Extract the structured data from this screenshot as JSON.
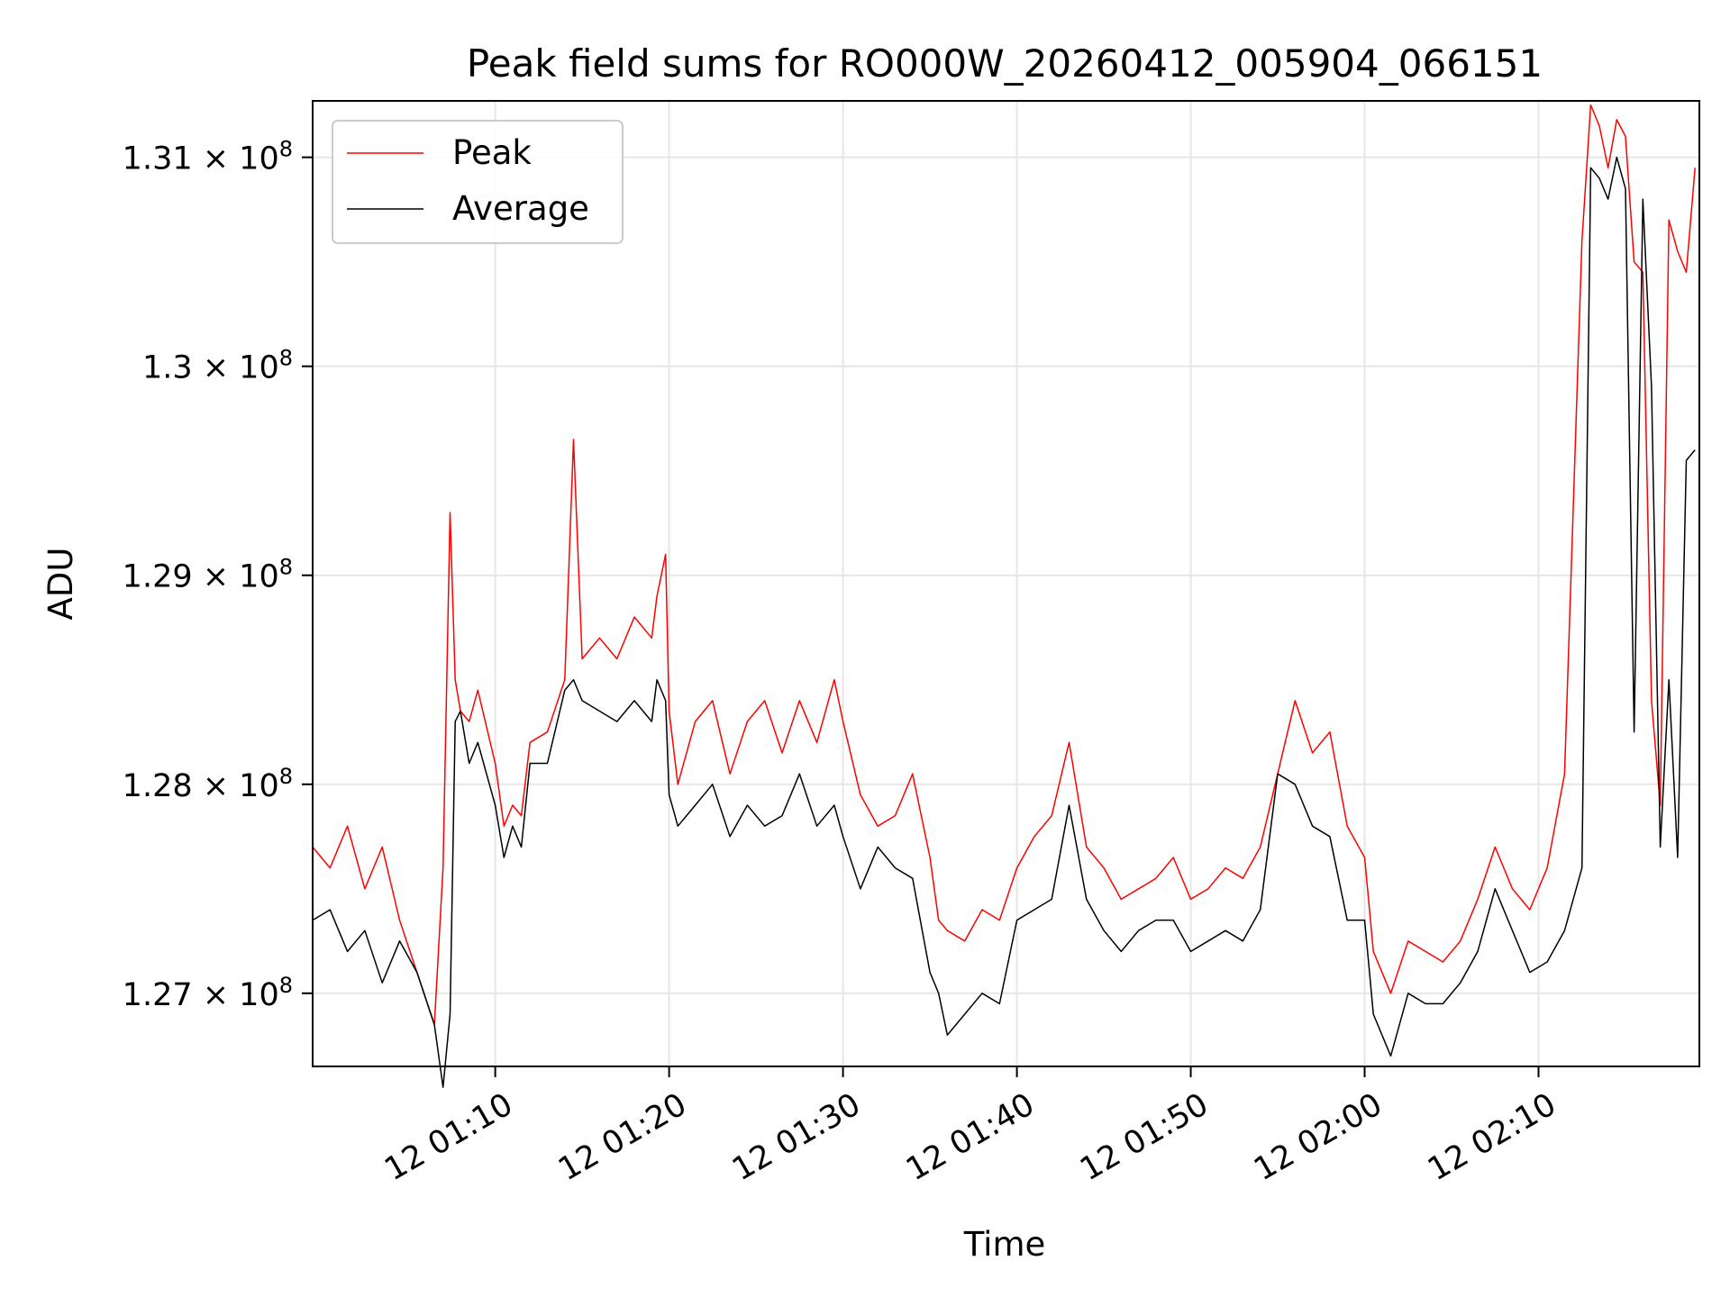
{
  "chart_data": {
    "type": "line",
    "title": "Peak field sums for RO000W_20260412_005904_066151",
    "xlabel": "Time",
    "ylabel": "ADU",
    "x_range_minutes": [
      "00:59:30",
      "02:19:15"
    ],
    "ylim": [
      126650000,
      131270000
    ],
    "grid": true,
    "legend_position": "upper-left",
    "x_ticks": [
      "12 01:10",
      "12 01:20",
      "12 01:30",
      "12 01:40",
      "12 01:50",
      "12 02:00",
      "12 02:10"
    ],
    "x_tick_minutes": [
      70,
      80,
      90,
      100,
      110,
      120,
      130
    ],
    "y_ticks": [
      {
        "mantissa": "1.27",
        "value": 127000000
      },
      {
        "mantissa": "1.28",
        "value": 128000000
      },
      {
        "mantissa": "1.29",
        "value": 129000000
      },
      {
        "mantissa": "1.3",
        "value": 130000000
      },
      {
        "mantissa": "1.31",
        "value": 131000000
      }
    ],
    "y_tick_suffix": "× 10",
    "y_tick_exponent": "8",
    "series": [
      {
        "name": "Peak",
        "color": "#ff0000",
        "x_minutes": [
          59.5,
          60.5,
          61.5,
          62.5,
          63.5,
          64.5,
          65.5,
          66.5,
          67.0,
          67.4,
          67.7,
          68.0,
          68.5,
          69.0,
          70.0,
          70.5,
          71.0,
          71.5,
          72.0,
          73.0,
          74.0,
          74.5,
          75.0,
          76.0,
          77.0,
          78.0,
          79.0,
          79.3,
          79.8,
          80.0,
          80.5,
          81.5,
          82.5,
          83.5,
          84.5,
          85.5,
          86.5,
          87.5,
          88.5,
          89.5,
          90.0,
          91.0,
          92.0,
          93.0,
          94.0,
          95.0,
          95.5,
          96.0,
          97.0,
          98.0,
          99.0,
          100.0,
          101.0,
          102.0,
          103.0,
          104.0,
          105.0,
          106.0,
          107.0,
          108.0,
          109.0,
          110.0,
          111.0,
          112.0,
          113.0,
          114.0,
          115.0,
          116.0,
          117.0,
          118.0,
          119.0,
          120.0,
          120.5,
          121.5,
          122.5,
          123.5,
          124.5,
          125.5,
          126.5,
          127.5,
          128.5,
          129.5,
          130.5,
          131.5,
          132.5,
          133.0,
          133.5,
          134.0,
          134.5,
          135.0,
          135.5,
          136.0,
          136.5,
          137.0,
          137.5,
          138.0,
          138.5,
          139.0
        ],
        "values": [
          127700000,
          127600000,
          127800000,
          127500000,
          127700000,
          127350000,
          127100000,
          126850000,
          127600000,
          129300000,
          128500000,
          128350000,
          128300000,
          128450000,
          128100000,
          127800000,
          127900000,
          127850000,
          128200000,
          128250000,
          128500000,
          129650000,
          128600000,
          128700000,
          128600000,
          128800000,
          128700000,
          128900000,
          129100000,
          128350000,
          128000000,
          128300000,
          128400000,
          128050000,
          128300000,
          128400000,
          128150000,
          128400000,
          128200000,
          128500000,
          128300000,
          127950000,
          127800000,
          127850000,
          128050000,
          127650000,
          127350000,
          127300000,
          127250000,
          127400000,
          127350000,
          127600000,
          127750000,
          127850000,
          128200000,
          127700000,
          127600000,
          127450000,
          127500000,
          127550000,
          127650000,
          127450000,
          127500000,
          127600000,
          127550000,
          127700000,
          128050000,
          128400000,
          128150000,
          128250000,
          127800000,
          127650000,
          127200000,
          127000000,
          127250000,
          127200000,
          127150000,
          127250000,
          127450000,
          127700000,
          127500000,
          127400000,
          127600000,
          128050000,
          130600000,
          131250000,
          131150000,
          130950000,
          131180000,
          131100000,
          130500000,
          130450000,
          128400000,
          127900000,
          130700000,
          130550000,
          130450000,
          130950000
        ]
      },
      {
        "name": "Average",
        "color": "#000000",
        "x_minutes": [
          59.5,
          60.5,
          61.5,
          62.5,
          63.5,
          64.5,
          65.5,
          66.5,
          67.0,
          67.4,
          67.7,
          68.0,
          68.5,
          69.0,
          70.0,
          70.5,
          71.0,
          71.5,
          72.0,
          73.0,
          74.0,
          74.5,
          75.0,
          76.0,
          77.0,
          78.0,
          79.0,
          79.3,
          79.8,
          80.0,
          80.5,
          81.5,
          82.5,
          83.5,
          84.5,
          85.5,
          86.5,
          87.5,
          88.5,
          89.5,
          90.0,
          91.0,
          92.0,
          93.0,
          94.0,
          95.0,
          95.5,
          96.0,
          97.0,
          98.0,
          99.0,
          100.0,
          101.0,
          102.0,
          103.0,
          104.0,
          105.0,
          106.0,
          107.0,
          108.0,
          109.0,
          110.0,
          111.0,
          112.0,
          113.0,
          114.0,
          115.0,
          116.0,
          117.0,
          118.0,
          119.0,
          120.0,
          120.5,
          121.5,
          122.5,
          123.5,
          124.5,
          125.5,
          126.5,
          127.5,
          128.5,
          129.5,
          130.5,
          131.5,
          132.5,
          133.0,
          133.5,
          134.0,
          134.5,
          135.0,
          135.5,
          136.0,
          136.5,
          137.0,
          137.5,
          138.0,
          138.5,
          139.0
        ],
        "values": [
          127350000,
          127400000,
          127200000,
          127300000,
          127050000,
          127250000,
          127100000,
          126850000,
          126550000,
          126900000,
          128300000,
          128350000,
          128100000,
          128200000,
          127900000,
          127650000,
          127800000,
          127700000,
          128100000,
          128100000,
          128450000,
          128500000,
          128400000,
          128350000,
          128300000,
          128400000,
          128300000,
          128500000,
          128400000,
          127950000,
          127800000,
          127900000,
          128000000,
          127750000,
          127900000,
          127800000,
          127850000,
          128050000,
          127800000,
          127900000,
          127750000,
          127500000,
          127700000,
          127600000,
          127550000,
          127100000,
          127000000,
          126800000,
          126900000,
          127000000,
          126950000,
          127350000,
          127400000,
          127450000,
          127900000,
          127450000,
          127300000,
          127200000,
          127300000,
          127350000,
          127350000,
          127200000,
          127250000,
          127300000,
          127250000,
          127400000,
          128050000,
          128000000,
          127800000,
          127750000,
          127350000,
          127350000,
          126900000,
          126700000,
          127000000,
          126950000,
          126950000,
          127050000,
          127200000,
          127500000,
          127300000,
          127100000,
          127150000,
          127300000,
          127600000,
          130950000,
          130900000,
          130800000,
          131000000,
          130850000,
          128250000,
          130800000,
          129900000,
          127700000,
          128500000,
          127650000,
          129550000,
          129600000
        ]
      }
    ]
  }
}
